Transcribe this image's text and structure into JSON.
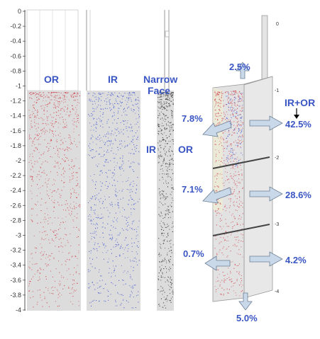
{
  "axis": {
    "ticks": [
      "0",
      "-0.2",
      "-0.4",
      "-0.6",
      "-0.8",
      "-1",
      "-1.2",
      "-1.4",
      "-1.6",
      "-1.8",
      "-2",
      "-2.2",
      "-2.4",
      "-2.6",
      "-2.8",
      "-3",
      "-3.2",
      "-3.4",
      "-3.6",
      "-3.8",
      "-4"
    ]
  },
  "panels": {
    "or_label": "OR",
    "ir_label": "IR",
    "narrow_face_line1": "Narrow",
    "narrow_face_line2": "Face",
    "narrow_ir": "IR",
    "narrow_or": "OR"
  },
  "iso": {
    "title": "IR+OR",
    "top_ticks": [
      "0",
      "-1",
      "-2",
      "-3",
      "-4"
    ],
    "flows": {
      "top": "2.5%",
      "left_upper": "7.8%",
      "right_upper": "42.5%",
      "left_mid": "7.1%",
      "right_mid": "28.6%",
      "left_lower": "0.7%",
      "right_lower": "4.2%",
      "bottom": "5.0%"
    }
  },
  "colors": {
    "label_blue": "#3a56c4",
    "or_particles": "#d0404a",
    "ir_particles": "#3a4fd0",
    "narrow_particles": "#222222",
    "panel_fill": "#dcdcdc",
    "arrow_fill": "#c9d9ea",
    "arrow_stroke": "#6d7f96"
  }
}
